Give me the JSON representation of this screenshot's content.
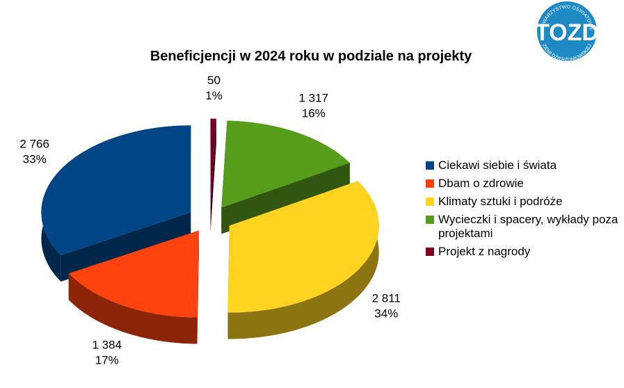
{
  "logo": {
    "text": "TOZD",
    "top": "TOWARZYSTWO OŚWIATOWE",
    "bottom": "ZIEMI DZIERŻONIOWSKIEJ"
  },
  "chart_data": {
    "type": "pie3d",
    "title": "Beneficjencji w 2024 roku w podziale na projekty",
    "categories": [
      "Ciekawi siebie i świata",
      "Dbam o zdrowie",
      "Klimaty sztuki i podróże",
      "Wycieczki i spacery, wykłady poza projektami",
      "Projekt z nagrody"
    ],
    "values": [
      2766,
      1384,
      2811,
      1317,
      50
    ],
    "value_labels": [
      "2 766",
      "1 384",
      "2 811",
      "1 317",
      "50"
    ],
    "percent_labels": [
      "33%",
      "17%",
      "34%",
      "16%",
      "1%"
    ],
    "colors": [
      "#004586",
      "#ff420e",
      "#ffd320",
      "#579d1c",
      "#7e0021"
    ],
    "legend": "right"
  }
}
